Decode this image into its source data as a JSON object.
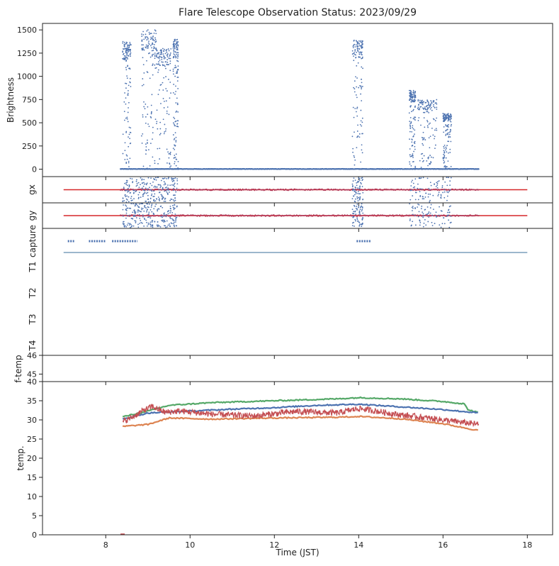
{
  "title": "Flare Telescope Observation Status: 2023/09/29",
  "xlabel": "Time (JST)",
  "colors": {
    "blue": "#4c72b0",
    "red": "#d62728",
    "crimson": "#b03a5b",
    "orange": "#dd8452",
    "green": "#55a868",
    "lightred": "#c44e52",
    "capture": "#3a6f9a"
  },
  "chart_data": [
    {
      "name": "brightness",
      "type": "scatter",
      "ylabel": "Brightness",
      "xlim": [
        6.5,
        18.6
      ],
      "ylim": [
        -80,
        1570
      ],
      "xticks": [
        8,
        10,
        12,
        14,
        16,
        18
      ],
      "yticks": [
        0,
        250,
        500,
        750,
        1000,
        1250,
        1500
      ],
      "ytick_labels": [
        "0",
        "250",
        "500",
        "750",
        "1000",
        "1250",
        "1500"
      ],
      "baseline": {
        "x": [
          8.35,
          16.85
        ],
        "y": 0
      },
      "bursts": [
        {
          "x0": 8.4,
          "x1": 8.6,
          "peak": 1380
        },
        {
          "x0": 8.85,
          "x1": 9.2,
          "peak": 1500
        },
        {
          "x0": 9.2,
          "x1": 9.55,
          "peak": 1300
        },
        {
          "x0": 9.6,
          "x1": 9.72,
          "peak": 1400
        },
        {
          "x0": 13.85,
          "x1": 14.1,
          "peak": 1390
        },
        {
          "x0": 15.2,
          "x1": 15.35,
          "peak": 850
        },
        {
          "x0": 15.4,
          "x1": 15.85,
          "peak": 750
        },
        {
          "x0": 16.0,
          "x1": 16.2,
          "peak": 600
        }
      ]
    },
    {
      "name": "gx",
      "type": "scatter",
      "ylabel": "gx",
      "xlim": [
        6.5,
        18.6
      ],
      "reference_line": {
        "x": [
          7.0,
          18.0
        ],
        "y": 0
      },
      "scatter_range": [
        8.35,
        16.85
      ]
    },
    {
      "name": "gy",
      "type": "scatter",
      "ylabel": "gy",
      "xlim": [
        6.5,
        18.6
      ],
      "reference_line": {
        "x": [
          7.0,
          18.0
        ],
        "y": 0
      },
      "scatter_range": [
        8.35,
        16.85
      ]
    },
    {
      "name": "capture",
      "type": "scatter",
      "xlim": [
        6.5,
        18.6
      ],
      "ytick_labels": [
        "capture",
        "T1",
        "T2",
        "T3",
        "T4"
      ],
      "capture_segments": [
        [
          7.1,
          7.25
        ],
        [
          7.6,
          8.0
        ],
        [
          8.15,
          8.75
        ],
        [
          13.95,
          14.3
        ]
      ],
      "T1_line": [
        7.0,
        18.0
      ]
    },
    {
      "name": "f-temp",
      "type": "line",
      "ylabel": "f-temp",
      "xlim": [
        6.5,
        18.6
      ],
      "ylim": [
        44.6,
        46
      ],
      "yticks": [
        45,
        46
      ],
      "ytick_labels": [
        "45",
        "46"
      ]
    },
    {
      "name": "temp",
      "type": "line",
      "ylabel": "temp.",
      "xlim": [
        6.5,
        18.6
      ],
      "ylim": [
        0,
        40
      ],
      "xticks": [
        8,
        10,
        12,
        14,
        16,
        18
      ],
      "xtick_labels": [
        "8",
        "10",
        "12",
        "14",
        "16",
        "18"
      ],
      "yticks": [
        0,
        5,
        10,
        15,
        20,
        25,
        30,
        35,
        40
      ],
      "ytick_labels": [
        "0",
        "5",
        "10",
        "15",
        "20",
        "25",
        "30",
        "35",
        "40"
      ],
      "series": [
        {
          "color": "green",
          "x": [
            8.4,
            9.0,
            9.5,
            10.5,
            12.0,
            13.5,
            14.0,
            15.0,
            16.0,
            16.5,
            16.6,
            16.85
          ],
          "y": [
            30.8,
            32.3,
            33.8,
            34.5,
            35.0,
            35.5,
            35.8,
            35.5,
            34.8,
            34.2,
            32.6,
            31.9
          ]
        },
        {
          "color": "blue",
          "x": [
            8.4,
            9.0,
            10.0,
            11.0,
            12.0,
            13.0,
            14.0,
            15.0,
            16.0,
            16.85
          ],
          "y": [
            30.2,
            31.8,
            32.3,
            32.8,
            33.2,
            33.8,
            34.1,
            33.4,
            32.7,
            31.8
          ]
        },
        {
          "color": "orange",
          "x": [
            8.4,
            9.0,
            9.5,
            10.5,
            12.0,
            13.5,
            14.0,
            15.0,
            16.0,
            16.85
          ],
          "y": [
            28.3,
            28.8,
            30.5,
            30.2,
            30.5,
            30.7,
            30.9,
            30.3,
            29.0,
            27.2
          ]
        },
        {
          "color": "lightred",
          "x": [
            8.4,
            8.6,
            8.9,
            9.1,
            9.4,
            9.8,
            10.5,
            11.5,
            12.5,
            13.5,
            14.0,
            15.0,
            16.0,
            16.85
          ],
          "y": [
            29.5,
            30.5,
            32.5,
            33.5,
            32.0,
            32.3,
            31.5,
            31.0,
            32.2,
            31.8,
            33.0,
            31.3,
            30.0,
            28.8
          ]
        }
      ]
    }
  ]
}
